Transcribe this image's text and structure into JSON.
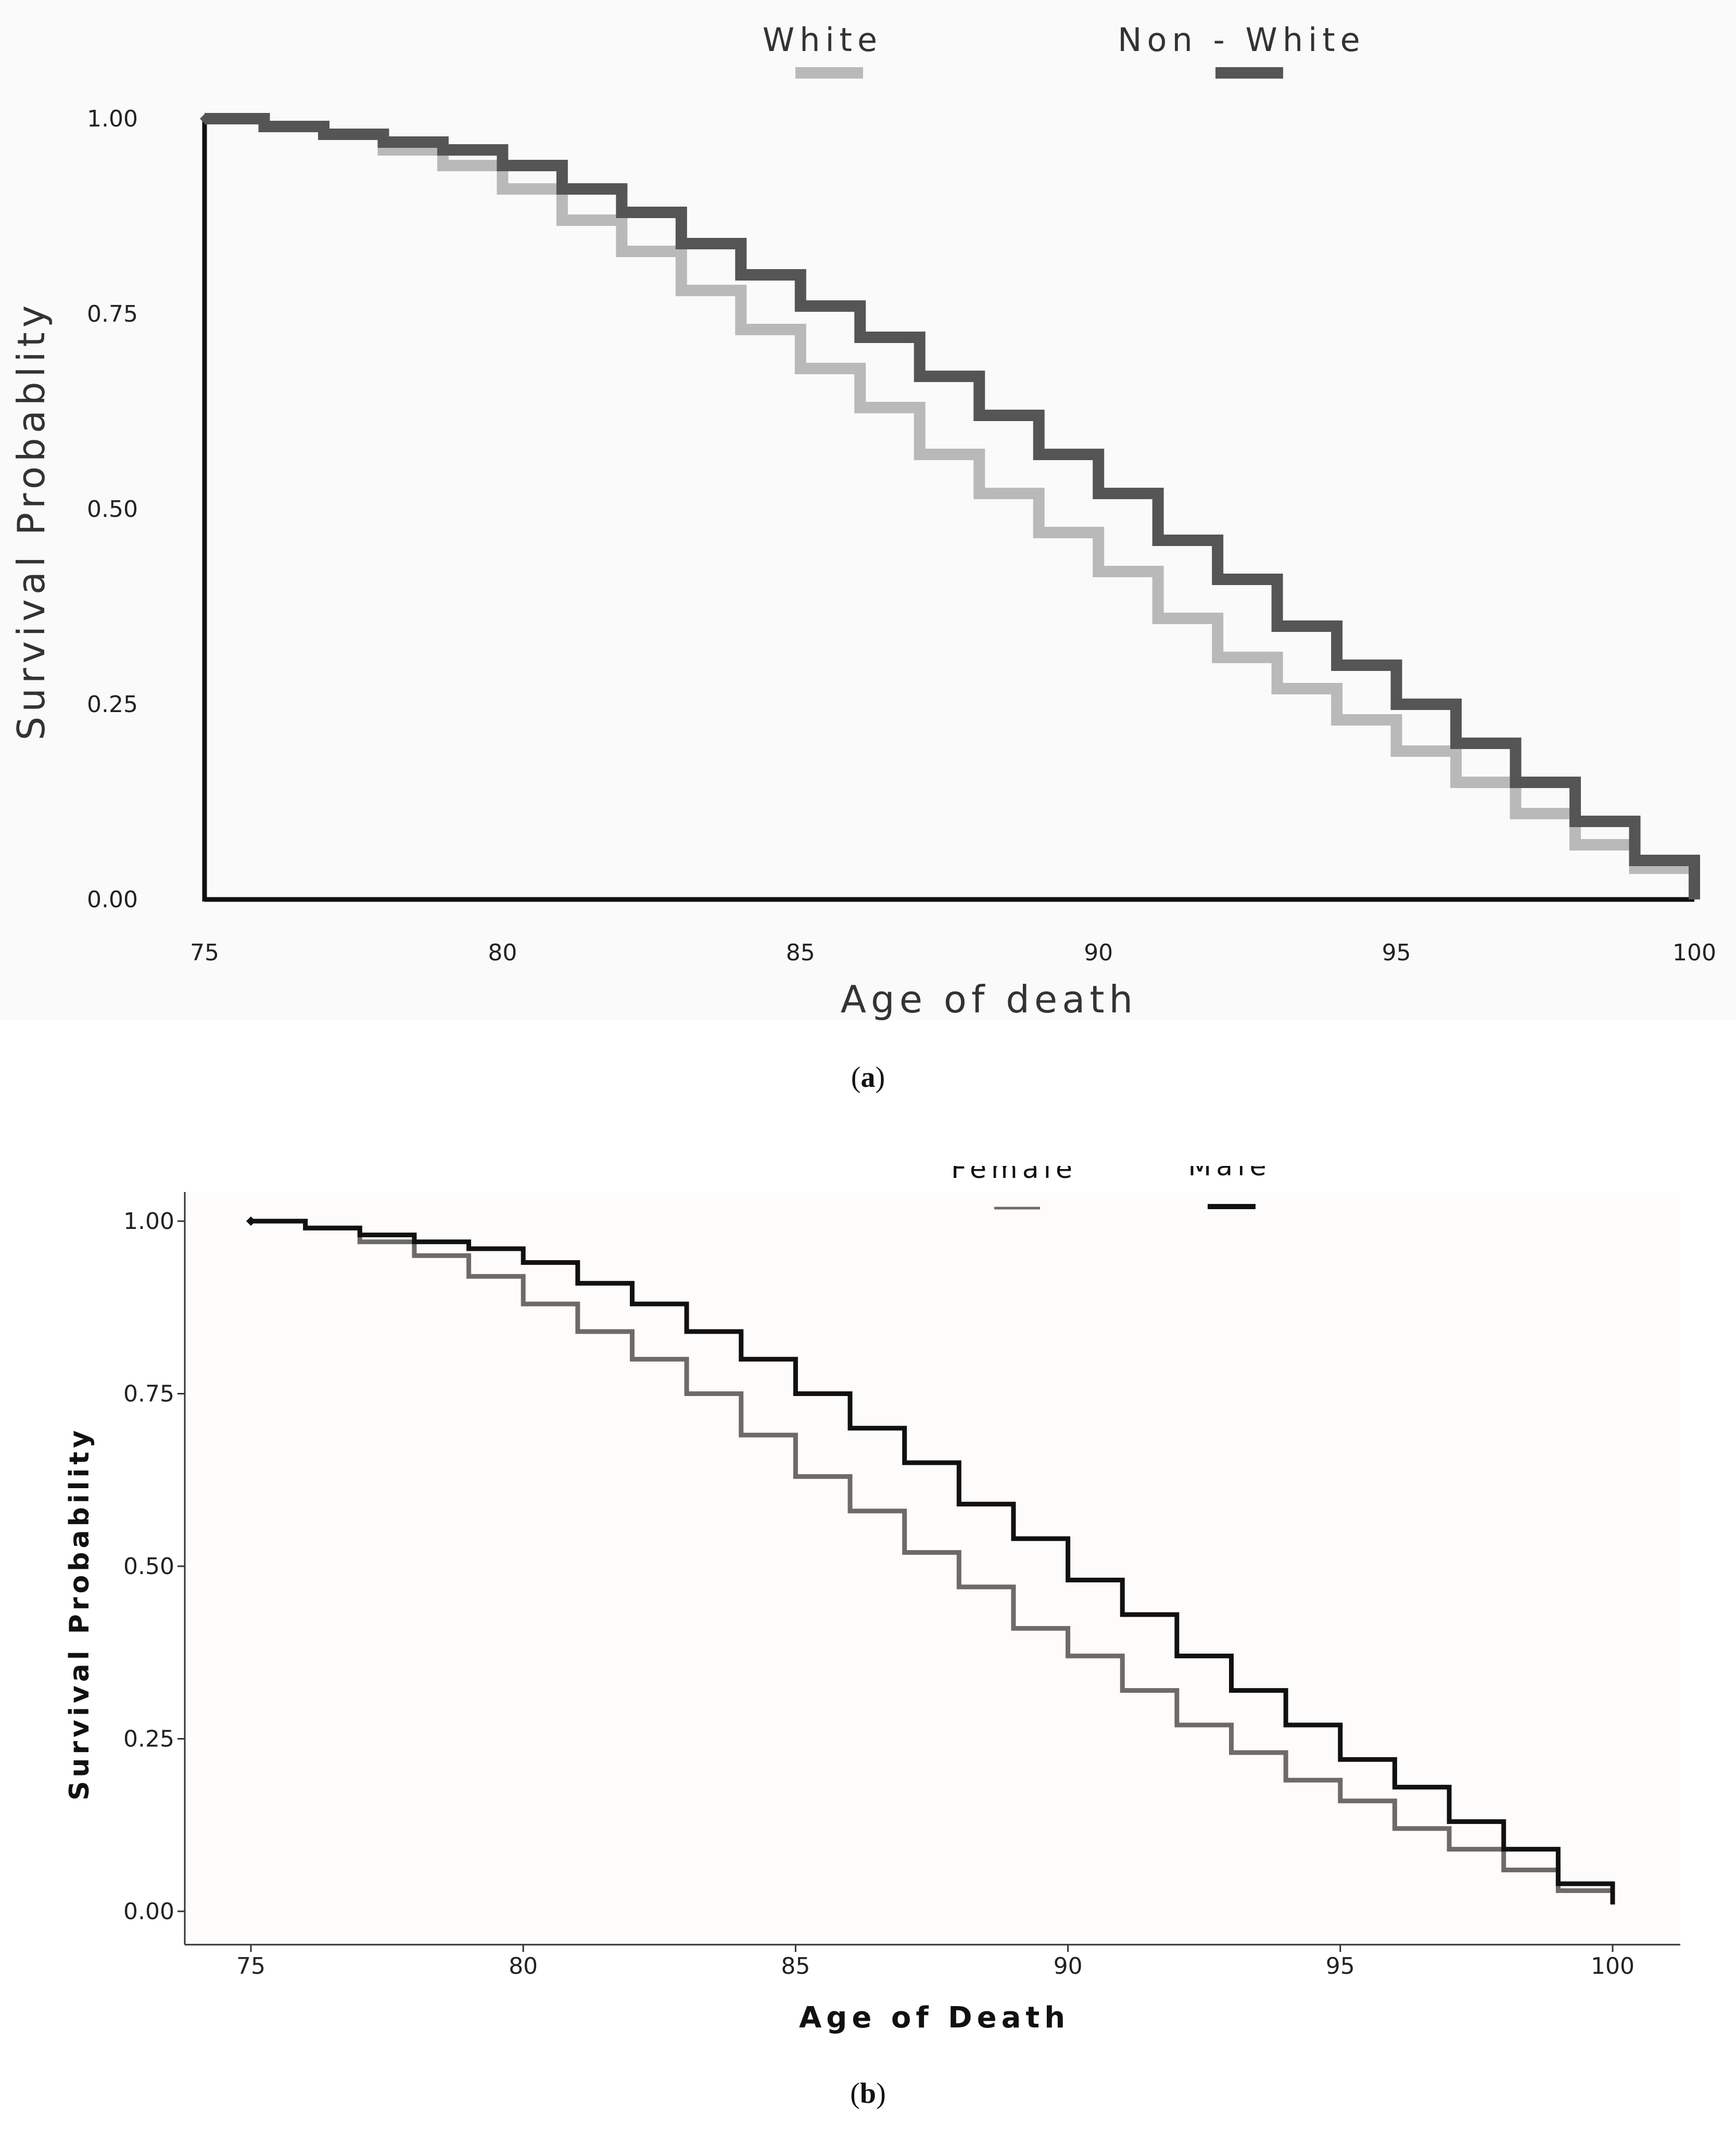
{
  "figures": [
    {
      "panel_label": "a",
      "legend": {
        "items": [
          {
            "label": "White",
            "color": "#b9b9b9"
          },
          {
            "label": "Non - White",
            "color": "#555555"
          }
        ]
      }
    },
    {
      "panel_label": "b",
      "legend": {
        "items": [
          {
            "label": "Female",
            "color": "#6e6a66"
          },
          {
            "label": "Male",
            "color": "#111111"
          }
        ]
      }
    }
  ],
  "chart_data": [
    {
      "type": "line",
      "step": true,
      "title": "",
      "xlabel": "Age of death",
      "ylabel": "Survival Probablity",
      "xlim": [
        75,
        100
      ],
      "ylim": [
        0,
        1
      ],
      "x_ticks": [
        "75",
        "80",
        "85",
        "90",
        "95",
        "100"
      ],
      "y_ticks": [
        "0.00",
        "0.25",
        "0.50",
        "0.75",
        "1.00"
      ],
      "legend_position": "top-center",
      "x": [
        75,
        76,
        77,
        78,
        79,
        80,
        81,
        82,
        83,
        84,
        85,
        86,
        87,
        88,
        89,
        90,
        91,
        92,
        93,
        94,
        95,
        96,
        97,
        98,
        99,
        100
      ],
      "series": [
        {
          "name": "White",
          "color": "#b9b9b9",
          "values": [
            1.0,
            0.99,
            0.98,
            0.96,
            0.94,
            0.91,
            0.87,
            0.83,
            0.78,
            0.73,
            0.68,
            0.63,
            0.57,
            0.52,
            0.47,
            0.42,
            0.36,
            0.31,
            0.27,
            0.23,
            0.19,
            0.15,
            0.11,
            0.07,
            0.04,
            0.0
          ]
        },
        {
          "name": "Non - White",
          "color": "#555555",
          "values": [
            1.0,
            0.99,
            0.98,
            0.97,
            0.96,
            0.94,
            0.91,
            0.88,
            0.84,
            0.8,
            0.76,
            0.72,
            0.67,
            0.62,
            0.57,
            0.52,
            0.46,
            0.41,
            0.35,
            0.3,
            0.25,
            0.2,
            0.15,
            0.1,
            0.05,
            0.0
          ]
        }
      ]
    },
    {
      "type": "line",
      "step": true,
      "title": "",
      "xlabel": "Age of Death",
      "ylabel": "Survival Probability",
      "xlim": [
        75,
        100
      ],
      "ylim": [
        0,
        1
      ],
      "x_ticks": [
        "75",
        "80",
        "85",
        "90",
        "95",
        "100"
      ],
      "y_ticks": [
        "0.00",
        "0.25",
        "0.50",
        "0.75",
        "1.00"
      ],
      "legend_position": "top-center",
      "x": [
        75,
        76,
        77,
        78,
        79,
        80,
        81,
        82,
        83,
        84,
        85,
        86,
        87,
        88,
        89,
        90,
        91,
        92,
        93,
        94,
        95,
        96,
        97,
        98,
        99,
        100
      ],
      "series": [
        {
          "name": "Female",
          "color": "#6e6a66",
          "values": [
            1.0,
            0.99,
            0.97,
            0.95,
            0.92,
            0.88,
            0.84,
            0.8,
            0.75,
            0.69,
            0.63,
            0.58,
            0.52,
            0.47,
            0.41,
            0.37,
            0.32,
            0.27,
            0.23,
            0.19,
            0.16,
            0.12,
            0.09,
            0.06,
            0.03,
            0.01
          ]
        },
        {
          "name": "Male",
          "color": "#111111",
          "values": [
            1.0,
            0.99,
            0.98,
            0.97,
            0.96,
            0.94,
            0.91,
            0.88,
            0.84,
            0.8,
            0.75,
            0.7,
            0.65,
            0.59,
            0.54,
            0.48,
            0.43,
            0.37,
            0.32,
            0.27,
            0.22,
            0.18,
            0.13,
            0.09,
            0.04,
            0.01
          ]
        }
      ]
    }
  ]
}
